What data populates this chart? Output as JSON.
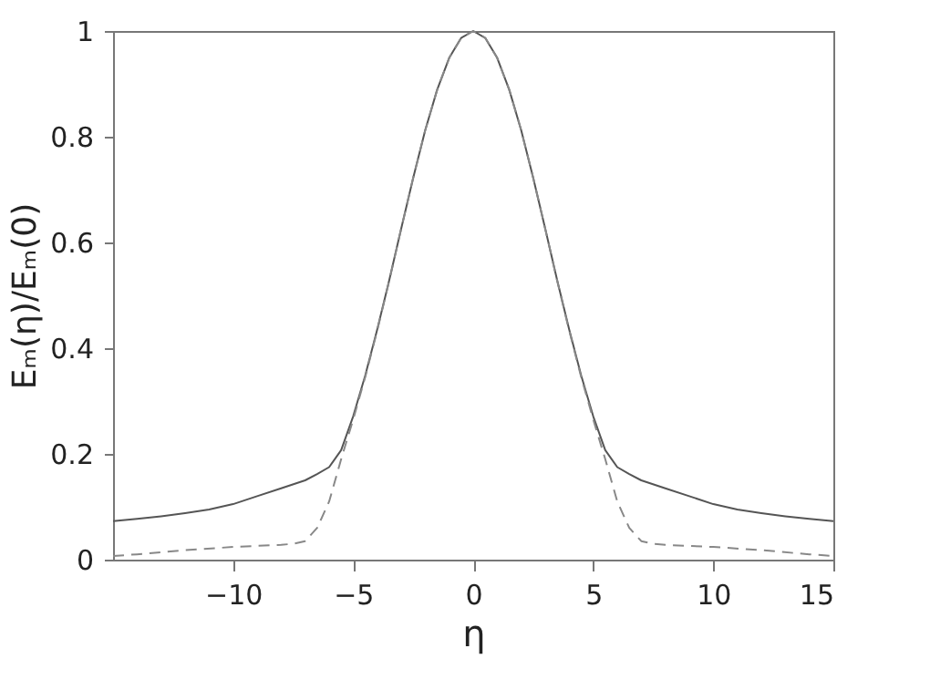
{
  "chart_data": {
    "type": "line",
    "xlabel": "η",
    "ylabel": "Eₘ(η)/Eₘ(0)",
    "xlim": [
      -15,
      15
    ],
    "xticks": [
      -10,
      -5,
      0,
      5,
      10,
      15
    ],
    "ylim": [
      0,
      1
    ],
    "yticks": [
      0,
      0.2,
      0.4,
      0.6,
      0.8,
      1
    ],
    "grid": false,
    "marker": "none",
    "series": [
      {
        "color": "#555555",
        "line_style": "solid",
        "x": [
          -15,
          -14,
          -13,
          -12,
          -11,
          -10,
          -9,
          -8,
          -7,
          -6.5,
          -6,
          -5.5,
          -5,
          -4.5,
          -4,
          -3.5,
          -3,
          -2.5,
          -2,
          -1.5,
          -1,
          -0.5,
          0,
          0.5,
          1,
          1.5,
          2,
          2.5,
          3,
          3.5,
          4,
          4.5,
          5,
          5.5,
          6,
          6.5,
          7,
          8,
          9,
          10,
          11,
          12,
          13,
          14,
          15
        ],
        "values": [
          0.073,
          0.077,
          0.082,
          0.088,
          0.095,
          0.105,
          0.12,
          0.135,
          0.15,
          0.162,
          0.175,
          0.207,
          0.271,
          0.348,
          0.435,
          0.528,
          0.626,
          0.722,
          0.812,
          0.889,
          0.949,
          0.987,
          1,
          0.987,
          0.949,
          0.889,
          0.812,
          0.722,
          0.626,
          0.528,
          0.435,
          0.348,
          0.271,
          0.207,
          0.175,
          0.162,
          0.15,
          0.135,
          0.12,
          0.105,
          0.095,
          0.088,
          0.082,
          0.077,
          0.073
        ]
      },
      {
        "color": "#888888",
        "line_style": "dashed",
        "x": [
          -15,
          -14,
          -12,
          -10,
          -8,
          -7.5,
          -7,
          -6.5,
          -6,
          -5.5,
          -5,
          -4.5,
          -4,
          -3.5,
          -3,
          -2.5,
          -2,
          -1.5,
          -1,
          -0.5,
          0,
          0.5,
          1,
          1.5,
          2,
          2.5,
          3,
          3.5,
          4,
          4.5,
          5,
          5.5,
          6,
          6.5,
          7,
          7.5,
          8,
          10,
          12,
          14,
          15
        ],
        "values": [
          0.007,
          0.01,
          0.018,
          0.024,
          0.028,
          0.03,
          0.035,
          0.06,
          0.11,
          0.19,
          0.265,
          0.345,
          0.433,
          0.527,
          0.626,
          0.722,
          0.812,
          0.889,
          0.949,
          0.987,
          1,
          0.987,
          0.949,
          0.889,
          0.812,
          0.722,
          0.626,
          0.527,
          0.433,
          0.345,
          0.265,
          0.19,
          0.11,
          0.06,
          0.035,
          0.03,
          0.028,
          0.024,
          0.018,
          0.01,
          0.007
        ]
      }
    ]
  }
}
